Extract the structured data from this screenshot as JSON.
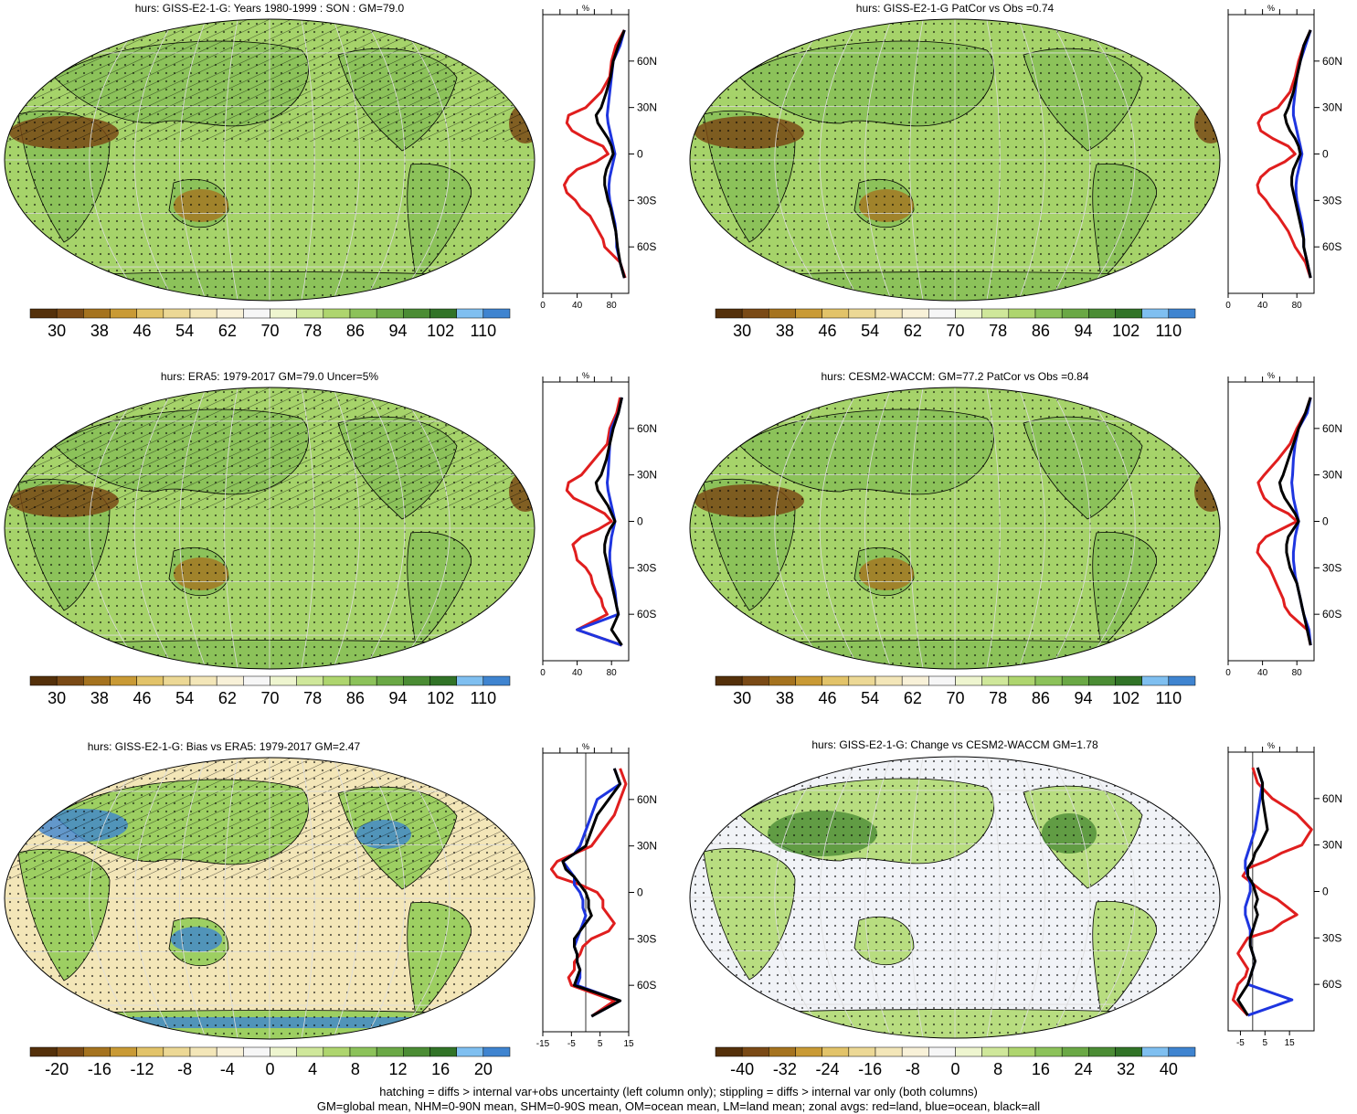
{
  "footer": {
    "line1": "hatching = diffs > internal var+obs uncertainty (left column only); stippling = diffs > internal var only (both columns)",
    "line2": "GM=global mean, NHM=0-90N mean, SHM=0-90S mean, OM=ocean mean, LM=land mean; zonal avgs: red=land, blue=ocean, black=all"
  },
  "colors": {
    "abs_scale": [
      "#54300a",
      "#7a4a16",
      "#a5731f",
      "#c99a35",
      "#e2c369",
      "#ecd895",
      "#f3e6b8",
      "#f8f1d8",
      "#f6f6f6",
      "#eef5cf",
      "#cfe79a",
      "#aed56e",
      "#8cc25a",
      "#6aa845",
      "#4b8c34",
      "#317327",
      "#7fbff0",
      "#3f84d0"
    ],
    "land_line": "#e01e1e",
    "ocean_line": "#1e35e0",
    "all_line": "#000000"
  },
  "chart_data": [
    {
      "type": "heatmap",
      "title": "hurs: GISS-E2-1-G: Years 1980-1999 : SON : GM=79.0",
      "colorbar_labels": [
        "30",
        "38",
        "46",
        "54",
        "62",
        "70",
        "78",
        "86",
        "94",
        "102",
        "110"
      ],
      "hatching": true,
      "stippling": true,
      "zonal": {
        "unit": "%",
        "xlim": [
          0,
          100
        ],
        "xticks": [
          "0",
          "40",
          "80"
        ],
        "lat_labels": [
          "60N",
          "30N",
          "0",
          "30S",
          "60S"
        ],
        "lat": [
          80,
          70,
          60,
          50,
          40,
          30,
          25,
          20,
          15,
          10,
          5,
          0,
          -5,
          -10,
          -15,
          -20,
          -25,
          -30,
          -35,
          -40,
          -45,
          -50,
          -55,
          -60,
          -70,
          -80
        ],
        "land": [
          95,
          85,
          80,
          78,
          68,
          50,
          30,
          28,
          34,
          50,
          70,
          76,
          62,
          40,
          30,
          25,
          28,
          38,
          44,
          55,
          60,
          65,
          70,
          72,
          90,
          96
        ],
        "ocean": [
          95,
          90,
          82,
          80,
          78,
          76,
          75,
          76,
          78,
          80,
          82,
          84,
          82,
          80,
          78,
          77,
          77,
          78,
          80,
          82,
          84,
          85,
          86,
          86,
          90,
          95
        ],
        "all": [
          95,
          88,
          82,
          79,
          74,
          68,
          62,
          64,
          70,
          76,
          80,
          82,
          78,
          74,
          72,
          72,
          74,
          76,
          79,
          81,
          83,
          85,
          86,
          87,
          90,
          95
        ]
      }
    },
    {
      "type": "heatmap",
      "title": "hurs: GISS-E2-1-G PatCor vs Obs =0.74",
      "colorbar_labels": [
        "30",
        "38",
        "46",
        "54",
        "62",
        "70",
        "78",
        "86",
        "94",
        "102",
        "110"
      ],
      "hatching": false,
      "stippling": true,
      "zonal": {
        "unit": "%",
        "xlim": [
          0,
          100
        ],
        "xticks": [
          "0",
          "40",
          "80"
        ],
        "lat_labels": [
          "60N",
          "30N",
          "0",
          "30S",
          "60S"
        ],
        "lat": [
          80,
          70,
          60,
          50,
          40,
          30,
          25,
          20,
          15,
          10,
          5,
          0,
          -5,
          -10,
          -15,
          -20,
          -25,
          -30,
          -35,
          -40,
          -45,
          -50,
          -55,
          -60,
          -70,
          -80
        ],
        "land": [
          96,
          88,
          82,
          78,
          72,
          58,
          40,
          35,
          38,
          52,
          70,
          78,
          66,
          48,
          38,
          34,
          36,
          44,
          50,
          58,
          64,
          70,
          74,
          78,
          90,
          96
        ],
        "ocean": [
          96,
          90,
          84,
          80,
          78,
          76,
          76,
          78,
          80,
          82,
          84,
          86,
          84,
          82,
          80,
          79,
          79,
          80,
          82,
          84,
          86,
          87,
          88,
          88,
          92,
          96
        ],
        "all": [
          96,
          88,
          84,
          80,
          76,
          70,
          66,
          68,
          72,
          78,
          82,
          84,
          80,
          76,
          74,
          74,
          76,
          78,
          80,
          82,
          84,
          86,
          88,
          88,
          92,
          96
        ]
      }
    },
    {
      "type": "heatmap",
      "title": "hurs: ERA5: 1979-2017 GM=79.0 Uncer=5%",
      "colorbar_labels": [
        "30",
        "38",
        "46",
        "54",
        "62",
        "70",
        "78",
        "86",
        "94",
        "102",
        "110"
      ],
      "hatching": true,
      "stippling": true,
      "zonal": {
        "unit": "%",
        "xlim": [
          0,
          100
        ],
        "xticks": [
          "0",
          "40",
          "80"
        ],
        "lat_labels": [
          "60N",
          "30N",
          "0",
          "30S",
          "60S"
        ],
        "lat": [
          80,
          70,
          60,
          50,
          40,
          30,
          25,
          20,
          15,
          10,
          5,
          0,
          -5,
          -10,
          -15,
          -20,
          -25,
          -30,
          -35,
          -40,
          -45,
          -50,
          -55,
          -60,
          -70,
          -80
        ],
        "land": [
          90,
          86,
          78,
          75,
          60,
          45,
          30,
          28,
          36,
          55,
          72,
          80,
          65,
          45,
          35,
          38,
          40,
          50,
          56,
          58,
          62,
          68,
          70,
          75,
          40,
          92
        ],
        "ocean": [
          92,
          88,
          80,
          78,
          77,
          76,
          75,
          76,
          78,
          80,
          82,
          84,
          82,
          80,
          79,
          78,
          78,
          79,
          80,
          82,
          84,
          85,
          86,
          88,
          40,
          92
        ],
        "all": [
          92,
          88,
          82,
          78,
          74,
          68,
          62,
          64,
          70,
          76,
          80,
          84,
          78,
          74,
          72,
          72,
          74,
          76,
          78,
          80,
          82,
          84,
          86,
          88,
          80,
          92
        ]
      }
    },
    {
      "type": "heatmap",
      "title": "hurs: CESM2-WACCM: GM=77.2 PatCor vs Obs =0.84",
      "colorbar_labels": [
        "30",
        "38",
        "46",
        "54",
        "62",
        "70",
        "78",
        "86",
        "94",
        "102",
        "110"
      ],
      "hatching": false,
      "stippling": true,
      "zonal": {
        "unit": "%",
        "xlim": [
          0,
          100
        ],
        "xticks": [
          "0",
          "40",
          "80"
        ],
        "lat_labels": [
          "60N",
          "30N",
          "0",
          "30S",
          "60S"
        ],
        "lat": [
          80,
          70,
          60,
          50,
          40,
          30,
          25,
          20,
          15,
          10,
          5,
          0,
          -5,
          -10,
          -15,
          -20,
          -25,
          -30,
          -35,
          -40,
          -45,
          -50,
          -55,
          -60,
          -70,
          -80
        ],
        "land": [
          96,
          90,
          80,
          72,
          58,
          42,
          35,
          38,
          42,
          52,
          70,
          80,
          62,
          44,
          36,
          34,
          40,
          48,
          52,
          56,
          60,
          64,
          66,
          72,
          92,
          96
        ],
        "ocean": [
          96,
          92,
          82,
          78,
          76,
          75,
          74,
          75,
          76,
          78,
          80,
          82,
          80,
          78,
          77,
          76,
          76,
          77,
          78,
          80,
          82,
          84,
          86,
          88,
          94,
          96
        ],
        "all": [
          96,
          90,
          82,
          76,
          70,
          64,
          60,
          62,
          66,
          72,
          78,
          82,
          76,
          70,
          68,
          68,
          70,
          72,
          76,
          80,
          82,
          84,
          86,
          88,
          92,
          96
        ]
      }
    },
    {
      "type": "heatmap",
      "title": "hurs: GISS-E2-1-G: Bias vs ERA5: 1979-2017  GM=2.47",
      "colorbar_labels": [
        "-20",
        "-16",
        "-12",
        "-8",
        "-4",
        "0",
        "4",
        "8",
        "12",
        "16",
        "20"
      ],
      "hatching": true,
      "stippling": true,
      "zonal": {
        "unit": "%",
        "xlim": [
          -15,
          15
        ],
        "xticks": [
          "-15",
          "-5",
          "5",
          "15"
        ],
        "lat_labels": [
          "60N",
          "30N",
          "0",
          "30S",
          "60S"
        ],
        "lat": [
          80,
          70,
          60,
          50,
          40,
          30,
          25,
          20,
          15,
          10,
          5,
          0,
          -5,
          -10,
          -15,
          -20,
          -25,
          -30,
          -35,
          -40,
          -45,
          -50,
          -55,
          -60,
          -70,
          -80
        ],
        "land": [
          12,
          14,
          12,
          10,
          6,
          2,
          -4,
          -10,
          -12,
          -10,
          -2,
          4,
          6,
          6,
          8,
          10,
          8,
          2,
          -1,
          -2,
          -4,
          -4,
          -6,
          -5,
          10,
          2
        ],
        "ocean": [
          10,
          12,
          4,
          2,
          0,
          -2,
          -4,
          -8,
          -6,
          -4,
          -4,
          -2,
          -1,
          -1,
          0,
          -1,
          -2,
          -3,
          -4,
          -3,
          -3,
          -2,
          -2,
          -3,
          12,
          2
        ],
        "all": [
          10,
          12,
          8,
          4,
          2,
          0,
          -4,
          -8,
          -7,
          -4,
          -2,
          0,
          1,
          1,
          2,
          0,
          -2,
          -4,
          -4,
          -3,
          -3,
          -2,
          -3,
          -4,
          12,
          2
        ]
      }
    },
    {
      "type": "heatmap",
      "title": "hurs: GISS-E2-1-G: Change vs CESM2-WACCM GM=1.78",
      "colorbar_labels": [
        "-40",
        "-32",
        "-24",
        "-16",
        "-8",
        "0",
        "8",
        "16",
        "24",
        "32",
        "40"
      ],
      "hatching": false,
      "stippling": true,
      "zonal": {
        "unit": "%",
        "xlim": [
          -10,
          25
        ],
        "xticks": [
          "-5",
          "5",
          "15"
        ],
        "lat_labels": [
          "60N",
          "30N",
          "0",
          "30S",
          "60S"
        ],
        "lat": [
          80,
          70,
          60,
          50,
          40,
          30,
          25,
          20,
          15,
          10,
          5,
          0,
          -5,
          -10,
          -15,
          -20,
          -25,
          -30,
          -35,
          -40,
          -45,
          -50,
          -55,
          -60,
          -70,
          -80
        ],
        "land": [
          0,
          2,
          8,
          18,
          24,
          20,
          12,
          6,
          -2,
          -4,
          0,
          4,
          10,
          14,
          18,
          12,
          8,
          -2,
          -4,
          -6,
          -4,
          -2,
          -3,
          -6,
          -8,
          -2
        ],
        "ocean": [
          2,
          4,
          3,
          2,
          1,
          -1,
          -2,
          -3,
          -3,
          -2,
          -1,
          -1,
          -2,
          -3,
          -3,
          -2,
          -1,
          -1,
          -1,
          0,
          1,
          0,
          -1,
          -2,
          16,
          -2
        ],
        "all": [
          2,
          4,
          4,
          5,
          6,
          3,
          1,
          0,
          -2,
          -2,
          0,
          1,
          2,
          1,
          2,
          1,
          0,
          -1,
          -1,
          0,
          1,
          0,
          -1,
          -2,
          -6,
          -2
        ]
      }
    }
  ]
}
